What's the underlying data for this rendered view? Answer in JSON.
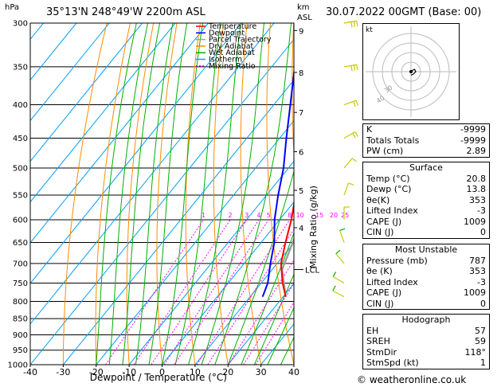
{
  "header": {
    "unit_left": "hPa",
    "location": "35°13'N  248°49'W  2200m  ASL",
    "unit_right_1": "km",
    "unit_right_2": "ASL",
    "datetime": "30.07.2022  00GMT  (Base: 00)"
  },
  "footer": {
    "copyright": "© weatheronline.co.uk"
  },
  "chart_data": {
    "type": "skew-t",
    "xlabel": "Dewpoint / Temperature (°C)",
    "ylabel_right": "Mixing Ratio (g/kg)",
    "xlim": [
      -40,
      40
    ],
    "ylim_hpa": [
      1000,
      300
    ],
    "pressure_ticks": [
      300,
      350,
      400,
      450,
      500,
      550,
      600,
      650,
      700,
      750,
      800,
      850,
      900,
      950,
      1000
    ],
    "temp_ticks": [
      -40,
      -30,
      -20,
      -10,
      0,
      10,
      20,
      30,
      40
    ],
    "km_ticks": [
      {
        "label": "9",
        "p": 308
      },
      {
        "label": "8",
        "p": 357
      },
      {
        "label": "7",
        "p": 411
      },
      {
        "label": "6",
        "p": 472
      },
      {
        "label": "5",
        "p": 541
      },
      {
        "label": "4",
        "p": 617
      }
    ],
    "lcl_label": "LCL",
    "lcl_p": 715,
    "mixing_ratio_labels": [
      "1",
      "2",
      "3",
      "4",
      "5",
      "8",
      "10",
      "15",
      "20",
      "25"
    ],
    "mixing_ratios": [
      1,
      2,
      3,
      4,
      5,
      8,
      10,
      15,
      20,
      25
    ],
    "legend": [
      {
        "name": "Temperature",
        "color": "#ff0000"
      },
      {
        "name": "Dewpoint",
        "color": "#0000ff"
      },
      {
        "name": "Parcel Trajectory",
        "color": "#a0a0a0"
      },
      {
        "name": "Dry Adiabat",
        "color": "#ff8c00"
      },
      {
        "name": "Wet Adiabat",
        "color": "#00b000"
      },
      {
        "name": "Isotherm",
        "color": "#00a0ff"
      },
      {
        "name": "Mixing Ratio",
        "color": "#ff00ff"
      }
    ],
    "temperature": [
      {
        "p": 787,
        "t": 20.8
      },
      {
        "p": 750,
        "t": 16.5
      },
      {
        "p": 700,
        "t": 11.2
      },
      {
        "p": 650,
        "t": 7.4
      },
      {
        "p": 600,
        "t": 3.6
      },
      {
        "p": 550,
        "t": -1.2
      },
      {
        "p": 500,
        "t": -6.0
      },
      {
        "p": 450,
        "t": -11.8
      },
      {
        "p": 400,
        "t": -18.0
      },
      {
        "p": 350,
        "t": -26.0
      },
      {
        "p": 300,
        "t": -35.0
      }
    ],
    "dewpoint": [
      {
        "p": 787,
        "t": 13.8
      },
      {
        "p": 750,
        "t": 12.0
      },
      {
        "p": 700,
        "t": 8.0
      },
      {
        "p": 650,
        "t": 4.0
      },
      {
        "p": 600,
        "t": -1.5
      },
      {
        "p": 550,
        "t": -6.5
      },
      {
        "p": 500,
        "t": -11.5
      },
      {
        "p": 450,
        "t": -18.0
      },
      {
        "p": 400,
        "t": -25.0
      },
      {
        "p": 350,
        "t": -33.0
      },
      {
        "p": 300,
        "t": -42.0
      }
    ],
    "parcel": [
      {
        "p": 787,
        "t": 20.8
      },
      {
        "p": 715,
        "t": 13.0
      },
      {
        "p": 650,
        "t": 9.6
      },
      {
        "p": 600,
        "t": 6.6
      },
      {
        "p": 550,
        "t": 3.1
      },
      {
        "p": 500,
        "t": -1.0
      },
      {
        "p": 450,
        "t": -6.0
      },
      {
        "p": 400,
        "t": -12.0
      },
      {
        "p": 350,
        "t": -20.0
      }
    ],
    "wind_barbs": [
      {
        "p": 300,
        "dir": 260,
        "spd": 30
      },
      {
        "p": 350,
        "dir": 260,
        "spd": 25
      },
      {
        "p": 400,
        "dir": 250,
        "spd": 20
      },
      {
        "p": 450,
        "dir": 240,
        "spd": 15
      },
      {
        "p": 500,
        "dir": 220,
        "spd": 10
      },
      {
        "p": 550,
        "dir": 200,
        "spd": 10
      },
      {
        "p": 600,
        "dir": 180,
        "spd": 10
      },
      {
        "p": 650,
        "dir": 160,
        "spd": 5
      },
      {
        "p": 700,
        "dir": 140,
        "spd": 5
      },
      {
        "p": 750,
        "dir": 120,
        "spd": 5
      },
      {
        "p": 787,
        "dir": 118,
        "spd": 1
      }
    ],
    "hodograph": {
      "label": "kt",
      "ring_labels": [
        "40",
        "30"
      ],
      "points": [
        {
          "u": -1,
          "v": 0
        },
        {
          "u": 1,
          "v": 1
        },
        {
          "u": 3,
          "v": 2
        },
        {
          "u": 4,
          "v": 0
        },
        {
          "u": 2,
          "v": -2
        },
        {
          "u": 0,
          "v": -3
        }
      ]
    }
  },
  "indices": [
    {
      "label": "K",
      "value": "-9999"
    },
    {
      "label": "Totals Totals",
      "value": "-9999"
    },
    {
      "label": "PW (cm)",
      "value": "2.89"
    }
  ],
  "surface": {
    "title": "Surface",
    "rows": [
      {
        "label": "Temp (°C)",
        "value": "20.8"
      },
      {
        "label": "Dewp (°C)",
        "value": "13.8"
      },
      {
        "label": "θe(K)",
        "value": "353"
      },
      {
        "label": "Lifted Index",
        "value": "-3"
      },
      {
        "label": "CAPE (J)",
        "value": "1009"
      },
      {
        "label": "CIN (J)",
        "value": "0"
      }
    ]
  },
  "most_unstable": {
    "title": "Most Unstable",
    "rows": [
      {
        "label": "Pressure (mb)",
        "value": "787"
      },
      {
        "label": "θe (K)",
        "value": "353"
      },
      {
        "label": "Lifted Index",
        "value": "-3"
      },
      {
        "label": "CAPE (J)",
        "value": "1009"
      },
      {
        "label": "CIN (J)",
        "value": "0"
      }
    ]
  },
  "hodograph_table": {
    "title": "Hodograph",
    "rows": [
      {
        "label": "EH",
        "value": "57"
      },
      {
        "label": "SREH",
        "value": "59"
      },
      {
        "label": "StmDir",
        "value": "118°"
      },
      {
        "label": "StmSpd (kt)",
        "value": "1"
      }
    ]
  }
}
